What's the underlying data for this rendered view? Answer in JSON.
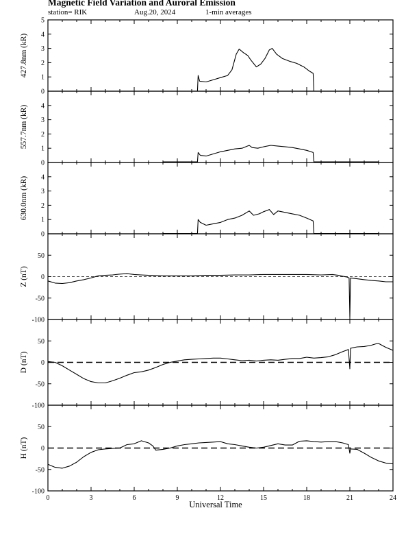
{
  "header": {
    "title": "Magnetic Field Variation and Auroral Emission",
    "station": "station= RIK",
    "date": "Aug.20, 2024",
    "averaging": "1-min averages"
  },
  "chart_data": [
    {
      "type": "line",
      "ylabel": "427.8nm (kR)",
      "ylim": [
        0,
        5
      ],
      "yticks": [
        0,
        1,
        2,
        3,
        4,
        5
      ],
      "xlim": [
        0,
        24
      ],
      "series": [
        {
          "values": [
            [
              10.4,
              0.0
            ],
            [
              10.45,
              1.1
            ],
            [
              10.55,
              0.7
            ],
            [
              11.0,
              0.65
            ],
            [
              11.5,
              0.8
            ],
            [
              12.0,
              0.95
            ],
            [
              12.5,
              1.1
            ],
            [
              12.8,
              1.5
            ],
            [
              13.1,
              2.6
            ],
            [
              13.3,
              2.95
            ],
            [
              13.6,
              2.7
            ],
            [
              13.9,
              2.5
            ],
            [
              14.1,
              2.2
            ],
            [
              14.5,
              1.7
            ],
            [
              14.8,
              1.9
            ],
            [
              15.1,
              2.3
            ],
            [
              15.4,
              2.9
            ],
            [
              15.6,
              3.0
            ],
            [
              15.9,
              2.6
            ],
            [
              16.3,
              2.3
            ],
            [
              16.8,
              2.1
            ],
            [
              17.3,
              1.95
            ],
            [
              17.8,
              1.7
            ],
            [
              18.2,
              1.4
            ],
            [
              18.45,
              1.25
            ],
            [
              18.5,
              0.0
            ]
          ]
        }
      ]
    },
    {
      "type": "line",
      "ylabel": "557.7nm (kR)",
      "ylim": [
        0,
        5
      ],
      "yticks": [
        0,
        1,
        2,
        3,
        4
      ],
      "xlim": [
        0,
        24
      ],
      "series": [
        {
          "values": [
            [
              8.0,
              0.05
            ],
            [
              10.4,
              0.05
            ],
            [
              10.45,
              0.7
            ],
            [
              10.6,
              0.5
            ],
            [
              11.0,
              0.45
            ],
            [
              11.5,
              0.6
            ],
            [
              12.0,
              0.75
            ],
            [
              12.5,
              0.85
            ],
            [
              13.0,
              0.95
            ],
            [
              13.5,
              1.0
            ],
            [
              14.0,
              1.2
            ],
            [
              14.2,
              1.05
            ],
            [
              14.6,
              1.0
            ],
            [
              15.0,
              1.1
            ],
            [
              15.5,
              1.2
            ],
            [
              16.0,
              1.15
            ],
            [
              16.5,
              1.1
            ],
            [
              17.0,
              1.05
            ],
            [
              17.5,
              0.95
            ],
            [
              18.0,
              0.85
            ],
            [
              18.45,
              0.7
            ],
            [
              18.5,
              0.05
            ],
            [
              23.0,
              0.05
            ]
          ]
        }
      ]
    },
    {
      "type": "line",
      "ylabel": "630.0nm (kR)",
      "ylim": [
        0,
        5
      ],
      "yticks": [
        0,
        1,
        2,
        3,
        4
      ],
      "xlim": [
        0,
        24
      ],
      "series": [
        {
          "values": [
            [
              8.0,
              0.02
            ],
            [
              10.4,
              0.02
            ],
            [
              10.45,
              1.0
            ],
            [
              10.6,
              0.8
            ],
            [
              11.0,
              0.6
            ],
            [
              11.5,
              0.7
            ],
            [
              12.0,
              0.8
            ],
            [
              12.5,
              1.0
            ],
            [
              13.0,
              1.1
            ],
            [
              13.5,
              1.3
            ],
            [
              14.0,
              1.6
            ],
            [
              14.3,
              1.3
            ],
            [
              14.7,
              1.4
            ],
            [
              15.0,
              1.55
            ],
            [
              15.4,
              1.7
            ],
            [
              15.7,
              1.35
            ],
            [
              16.0,
              1.6
            ],
            [
              16.5,
              1.5
            ],
            [
              17.0,
              1.4
            ],
            [
              17.5,
              1.3
            ],
            [
              18.0,
              1.1
            ],
            [
              18.45,
              0.9
            ],
            [
              18.5,
              0.02
            ],
            [
              23.0,
              0.02
            ]
          ]
        }
      ]
    },
    {
      "type": "line",
      "ylabel": "Z (nT)",
      "ylim": [
        -100,
        100
      ],
      "yticks": [
        -100,
        -50,
        0,
        50
      ],
      "zero_line": "dashed-thin",
      "xlim": [
        0,
        24
      ],
      "series": [
        {
          "values": [
            [
              0,
              -10
            ],
            [
              0.5,
              -15
            ],
            [
              1.0,
              -16
            ],
            [
              1.5,
              -14
            ],
            [
              2.0,
              -10
            ],
            [
              2.5,
              -7
            ],
            [
              3.0,
              -3
            ],
            [
              3.5,
              2
            ],
            [
              4.0,
              3
            ],
            [
              4.5,
              4
            ],
            [
              5.0,
              6
            ],
            [
              5.5,
              7
            ],
            [
              6.0,
              5
            ],
            [
              6.5,
              4
            ],
            [
              7.0,
              3
            ],
            [
              8.0,
              2
            ],
            [
              9.0,
              2
            ],
            [
              10.0,
              2
            ],
            [
              11.0,
              3
            ],
            [
              12.0,
              3
            ],
            [
              13.0,
              4
            ],
            [
              14.0,
              4
            ],
            [
              15.0,
              5
            ],
            [
              16.0,
              5
            ],
            [
              17.0,
              5
            ],
            [
              18.0,
              5
            ],
            [
              19.0,
              4
            ],
            [
              19.8,
              5
            ],
            [
              20.2,
              3
            ],
            [
              20.5,
              1
            ],
            [
              20.8,
              -1
            ],
            [
              20.95,
              -3
            ],
            [
              21.0,
              -95
            ],
            [
              21.05,
              -3
            ],
            [
              21.5,
              -5
            ],
            [
              22.0,
              -7
            ],
            [
              22.5,
              -9
            ],
            [
              23.0,
              -10
            ],
            [
              23.5,
              -12
            ],
            [
              23.9,
              -12
            ],
            [
              24.0,
              -12
            ]
          ]
        }
      ]
    },
    {
      "type": "line",
      "ylabel": "D (nT)",
      "ylim": [
        -100,
        100
      ],
      "yticks": [
        -100,
        -50,
        0,
        50
      ],
      "zero_line": "dashed-thick",
      "xlim": [
        0,
        24
      ],
      "series": [
        {
          "values": [
            [
              0,
              2
            ],
            [
              0.5,
              0
            ],
            [
              1.0,
              -8
            ],
            [
              1.5,
              -18
            ],
            [
              2.0,
              -28
            ],
            [
              2.5,
              -38
            ],
            [
              3.0,
              -45
            ],
            [
              3.5,
              -48
            ],
            [
              4.0,
              -48
            ],
            [
              4.5,
              -43
            ],
            [
              5.0,
              -37
            ],
            [
              5.5,
              -30
            ],
            [
              6.0,
              -24
            ],
            [
              6.5,
              -22
            ],
            [
              7.0,
              -18
            ],
            [
              7.5,
              -12
            ],
            [
              8.0,
              -5
            ],
            [
              8.5,
              0
            ],
            [
              9.0,
              3
            ],
            [
              9.5,
              6
            ],
            [
              10.0,
              7
            ],
            [
              10.5,
              8
            ],
            [
              11.0,
              9
            ],
            [
              11.5,
              10
            ],
            [
              12.0,
              10
            ],
            [
              12.5,
              8
            ],
            [
              13.0,
              6
            ],
            [
              13.5,
              4
            ],
            [
              14.0,
              5
            ],
            [
              14.5,
              3
            ],
            [
              15.0,
              5
            ],
            [
              15.5,
              6
            ],
            [
              16.0,
              5
            ],
            [
              16.5,
              7
            ],
            [
              17.0,
              9
            ],
            [
              17.5,
              9
            ],
            [
              18.0,
              12
            ],
            [
              18.5,
              10
            ],
            [
              19.0,
              11
            ],
            [
              19.5,
              13
            ],
            [
              20.0,
              18
            ],
            [
              20.5,
              25
            ],
            [
              20.9,
              30
            ],
            [
              21.0,
              -15
            ],
            [
              21.05,
              33
            ],
            [
              21.5,
              36
            ],
            [
              22.0,
              37
            ],
            [
              22.5,
              40
            ],
            [
              22.8,
              43
            ],
            [
              23.0,
              44
            ],
            [
              23.5,
              35
            ],
            [
              24.0,
              28
            ]
          ]
        }
      ]
    },
    {
      "type": "line",
      "ylabel": "H (nT)",
      "ylim": [
        -100,
        100
      ],
      "yticks": [
        -100,
        -50,
        0,
        50
      ],
      "zero_line": "dashed-thick",
      "xlim": [
        0,
        24
      ],
      "series": [
        {
          "values": [
            [
              0,
              -38
            ],
            [
              0.5,
              -45
            ],
            [
              1.0,
              -47
            ],
            [
              1.5,
              -42
            ],
            [
              2.0,
              -33
            ],
            [
              2.5,
              -20
            ],
            [
              3.0,
              -10
            ],
            [
              3.5,
              -4
            ],
            [
              4.0,
              -2
            ],
            [
              4.5,
              -1
            ],
            [
              5.0,
              0
            ],
            [
              5.5,
              8
            ],
            [
              6.0,
              10
            ],
            [
              6.5,
              17
            ],
            [
              7.0,
              12
            ],
            [
              7.3,
              5
            ],
            [
              7.5,
              -5
            ],
            [
              8.0,
              -3
            ],
            [
              8.5,
              0
            ],
            [
              9.0,
              5
            ],
            [
              9.5,
              8
            ],
            [
              10.0,
              10
            ],
            [
              10.5,
              12
            ],
            [
              11.0,
              13
            ],
            [
              11.5,
              14
            ],
            [
              12.0,
              15
            ],
            [
              12.5,
              10
            ],
            [
              13.0,
              8
            ],
            [
              13.5,
              5
            ],
            [
              14.0,
              2
            ],
            [
              14.5,
              0
            ],
            [
              15.0,
              2
            ],
            [
              15.5,
              6
            ],
            [
              16.0,
              10
            ],
            [
              16.5,
              7
            ],
            [
              17.0,
              7
            ],
            [
              17.5,
              16
            ],
            [
              18.0,
              17
            ],
            [
              18.5,
              15
            ],
            [
              19.0,
              14
            ],
            [
              19.5,
              15
            ],
            [
              20.0,
              15
            ],
            [
              20.5,
              12
            ],
            [
              20.9,
              8
            ],
            [
              21.0,
              -12
            ],
            [
              21.05,
              -2
            ],
            [
              21.5,
              -3
            ],
            [
              22.0,
              -12
            ],
            [
              22.5,
              -22
            ],
            [
              23.0,
              -30
            ],
            [
              23.5,
              -35
            ],
            [
              24.0,
              -37
            ]
          ]
        }
      ]
    }
  ],
  "xaxis": {
    "label": "Universal Time",
    "ticks": [
      0,
      3,
      6,
      9,
      12,
      15,
      18,
      21,
      24
    ],
    "minor_step": 1
  }
}
